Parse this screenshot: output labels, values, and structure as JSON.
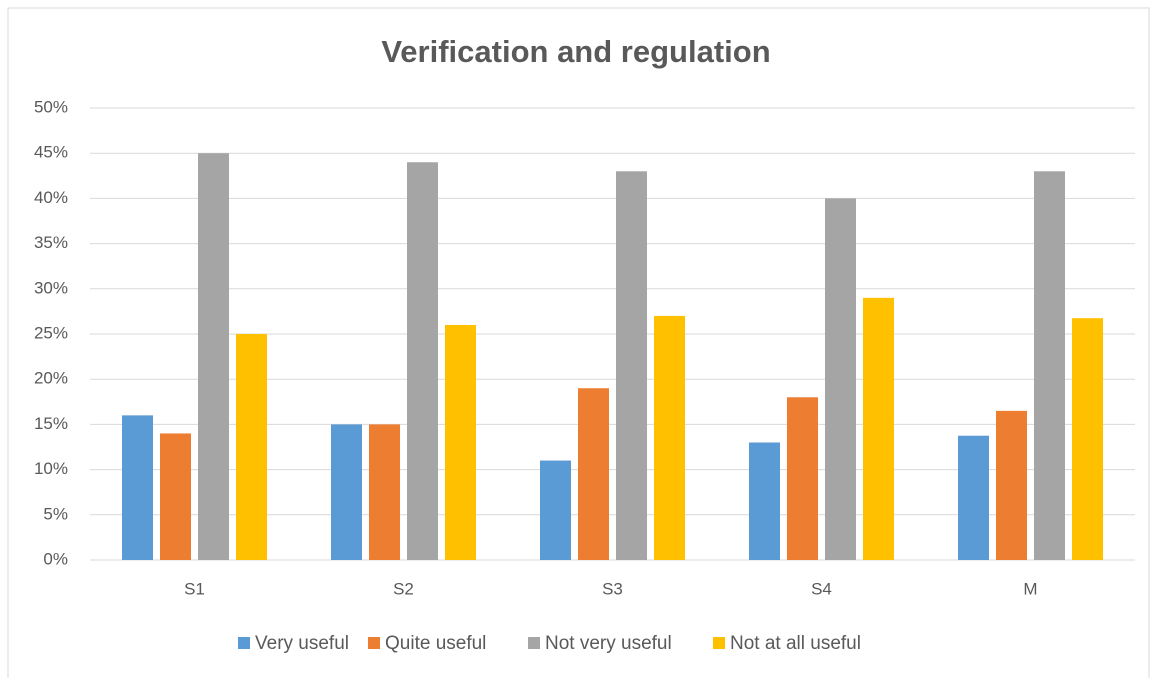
{
  "chart_data": {
    "type": "bar",
    "title": "Verification and regulation",
    "categories": [
      "S1",
      "S2",
      "S3",
      "S4",
      "M"
    ],
    "series": [
      {
        "name": "Very useful",
        "color": "#5b9bd5",
        "values": [
          16,
          15,
          11,
          13,
          13.75
        ]
      },
      {
        "name": "Quite useful",
        "color": "#ed7d31",
        "values": [
          14,
          15,
          19,
          18,
          16.5
        ]
      },
      {
        "name": "Not very useful",
        "color": "#a5a5a5",
        "values": [
          45,
          44,
          43,
          40,
          43
        ]
      },
      {
        "name": "Not at all useful",
        "color": "#ffc000",
        "values": [
          25,
          26,
          27,
          29,
          26.75
        ]
      }
    ],
    "ylim": [
      0,
      50
    ],
    "yticks": [
      {
        "value": 0,
        "label": "0%"
      },
      {
        "value": 5,
        "label": "5%"
      },
      {
        "value": 10,
        "label": "10%"
      },
      {
        "value": 15,
        "label": "15%"
      },
      {
        "value": 20,
        "label": "20%"
      },
      {
        "value": 25,
        "label": "25%"
      },
      {
        "value": 30,
        "label": "30%"
      },
      {
        "value": 35,
        "label": "35%"
      },
      {
        "value": 40,
        "label": "40%"
      },
      {
        "value": 45,
        "label": "45%"
      },
      {
        "value": 50,
        "label": "50%"
      }
    ],
    "grid": true,
    "legend": "bottom"
  }
}
